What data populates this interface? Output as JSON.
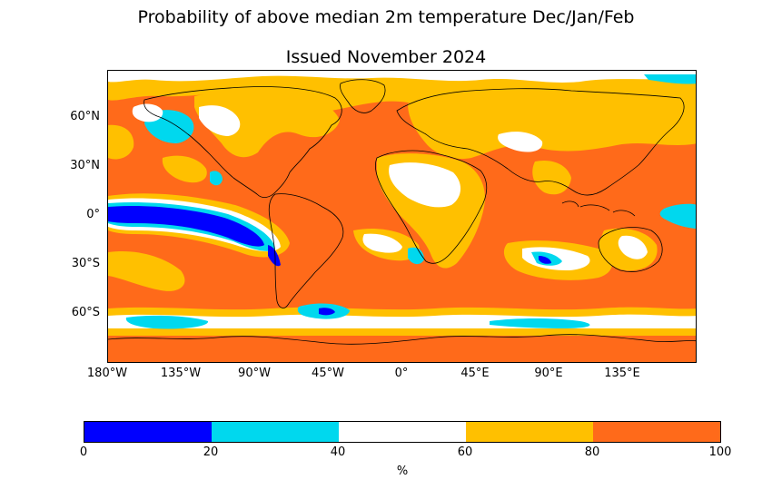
{
  "title": "Probability of above median 2m temperature Dec/Jan/Feb",
  "subtitle": "Issued November 2024",
  "latitude_labels": [
    "60°N",
    "30°N",
    "0°",
    "30°S",
    "60°S"
  ],
  "longitude_labels": [
    "180°W",
    "135°W",
    "90°W",
    "45°W",
    "0°",
    "45°E",
    "90°E",
    "135°E"
  ],
  "colorbar": {
    "ticks": [
      "0",
      "20",
      "40",
      "60",
      "80",
      "100"
    ],
    "unit": "%",
    "bins": [
      {
        "range": "0-20",
        "color": "#0000ff"
      },
      {
        "range": "20-40",
        "color": "#00d8ee"
      },
      {
        "range": "40-60",
        "color": "#ffffff"
      },
      {
        "range": "60-80",
        "color": "#ffc000"
      },
      {
        "range": "80-100",
        "color": "#ff6a1a"
      }
    ]
  },
  "colors": {
    "very_low": "#0000ff",
    "low": "#00d8ee",
    "neutral": "#ffffff",
    "high": "#ffc000",
    "very_high": "#ff6a1a",
    "coastline": "#000000"
  }
}
